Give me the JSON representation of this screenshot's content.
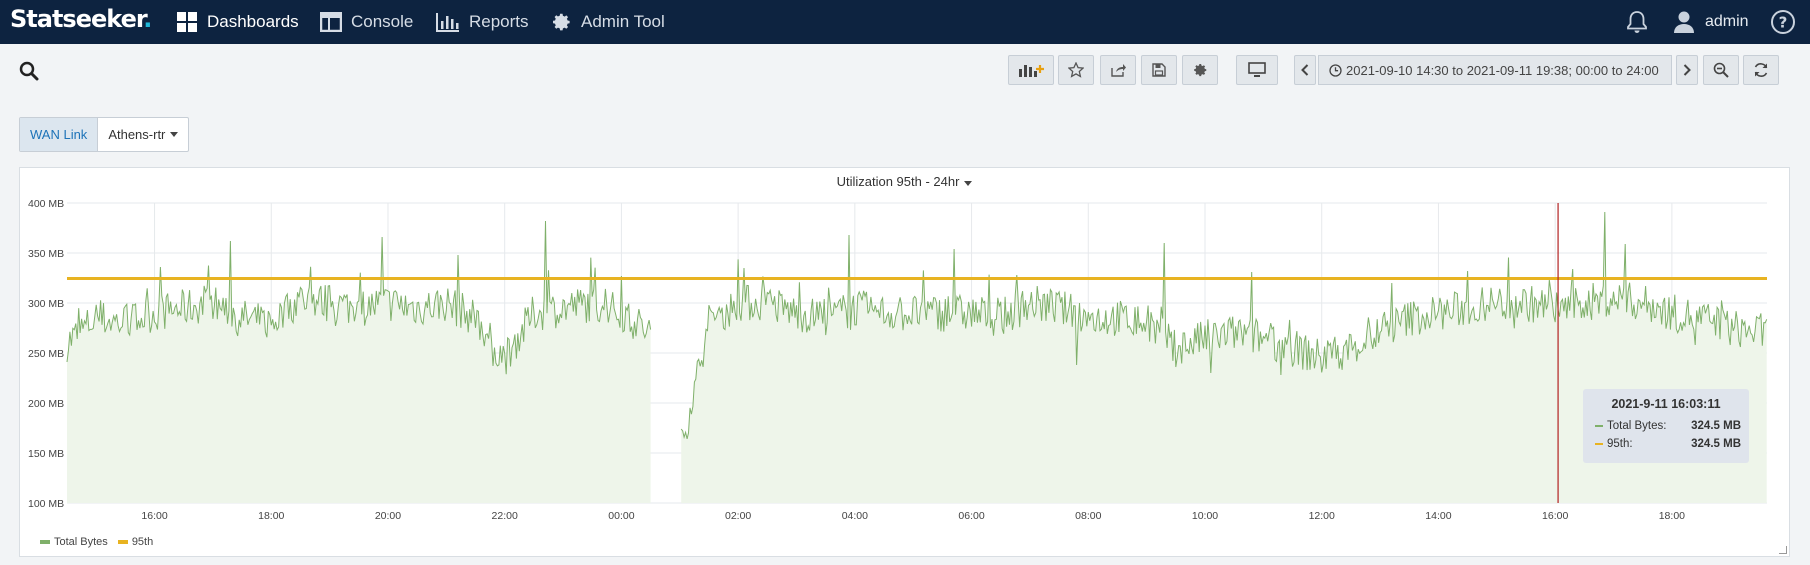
{
  "nav": {
    "logo": "Statseeker",
    "logo_dot": ".",
    "items": [
      {
        "label": "Dashboards",
        "icon": "dashboard-grid-icon"
      },
      {
        "label": "Console",
        "icon": "console-panel-icon"
      },
      {
        "label": "Reports",
        "icon": "bar-chart-icon"
      },
      {
        "label": "Admin Tool",
        "icon": "gear-icon"
      }
    ],
    "user": "admin"
  },
  "toolbar": {
    "buttons": [
      "add-chart-icon",
      "star-icon",
      "share-icon",
      "save-icon",
      "gear-icon",
      "monitor-icon"
    ],
    "date_range": "2021-09-10 14:30 to 2021-09-11 19:38; 00:00 to 24:00"
  },
  "filter": {
    "label": "WAN Link",
    "value": "Athens-rtr"
  },
  "panel": {
    "title": "Utilization 95th - 24hr"
  },
  "tooltip": {
    "time": "2021-9-11 16:03:11",
    "total_label": "Total Bytes:",
    "total_value": "324.5 MB",
    "p95_label": "95th:",
    "p95_value": "324.5 MB"
  },
  "colors": {
    "total": "#7fb06a",
    "total_fill": "#eef5ea",
    "p95": "#e8b321",
    "cursor": "#b22222",
    "nav_bg": "#0d2340"
  },
  "chart_data": {
    "type": "area",
    "title": "Utilization 95th - 24hr",
    "y_ticks": [
      "400 MB",
      "350 MB",
      "300 MB",
      "250 MB",
      "200 MB",
      "150 MB",
      "100 MB"
    ],
    "ylim": [
      100,
      400
    ],
    "y_unit": "MB",
    "x_ticks": [
      "16:00",
      "18:00",
      "20:00",
      "22:00",
      "00:00",
      "02:00",
      "04:00",
      "06:00",
      "08:00",
      "10:00",
      "12:00",
      "14:00",
      "16:00",
      "18:00"
    ],
    "x_range_hours": [
      14.5,
      43.63
    ],
    "gap_hours": [
      24.5,
      25.0
    ],
    "cursor_hour": 40.05,
    "grid": true,
    "legend_position": "bottom-left",
    "series": [
      {
        "name": "Total Bytes",
        "x_hours": [
          14.5,
          15.0,
          15.5,
          16.0,
          16.5,
          17.0,
          17.5,
          18.0,
          18.5,
          19.0,
          19.5,
          20.0,
          20.5,
          21.0,
          21.5,
          22.0,
          22.5,
          23.0,
          23.5,
          24.0,
          24.5,
          25.0,
          25.5,
          26.0,
          26.5,
          27.0,
          27.5,
          28.0,
          28.5,
          29.0,
          29.5,
          30.0,
          30.5,
          31.0,
          31.5,
          32.0,
          32.5,
          33.0,
          33.5,
          34.0,
          34.5,
          35.0,
          35.5,
          36.0,
          36.5,
          37.0,
          37.5,
          38.0,
          38.5,
          39.0,
          39.5,
          40.0,
          40.5,
          41.0,
          41.5,
          42.0,
          42.5,
          43.0,
          43.63
        ],
        "values": [
          260,
          285,
          280,
          290,
          295,
          300,
          285,
          280,
          305,
          300,
          295,
          300,
          295,
          300,
          285,
          245,
          290,
          295,
          300,
          290,
          270,
          150,
          280,
          300,
          300,
          290,
          285,
          295,
          290,
          290,
          290,
          290,
          285,
          300,
          295,
          285,
          285,
          280,
          255,
          265,
          270,
          265,
          255,
          245,
          255,
          270,
          285,
          290,
          295,
          300,
          300,
          295,
          300,
          305,
          300,
          290,
          285,
          275,
          270
        ],
        "peaks": [
          [
            16.1,
            336
          ],
          [
            17.3,
            362
          ],
          [
            19.9,
            366
          ],
          [
            21.2,
            348
          ],
          [
            22.7,
            382
          ],
          [
            24.0,
            327
          ],
          [
            26.1,
            335
          ],
          [
            27.9,
            368
          ],
          [
            29.7,
            354
          ],
          [
            33.3,
            360
          ],
          [
            34.8,
            331
          ],
          [
            37.2,
            320
          ],
          [
            38.5,
            332
          ],
          [
            40.3,
            334
          ],
          [
            40.85,
            391
          ],
          [
            41.2,
            359
          ]
        ],
        "troughs": [
          [
            21.8,
            237
          ],
          [
            24.9,
            152
          ],
          [
            31.8,
            238
          ],
          [
            34.1,
            230
          ],
          [
            35.3,
            228
          ],
          [
            42.4,
            258
          ]
        ]
      },
      {
        "name": "95th",
        "value": 324.5
      }
    ]
  }
}
